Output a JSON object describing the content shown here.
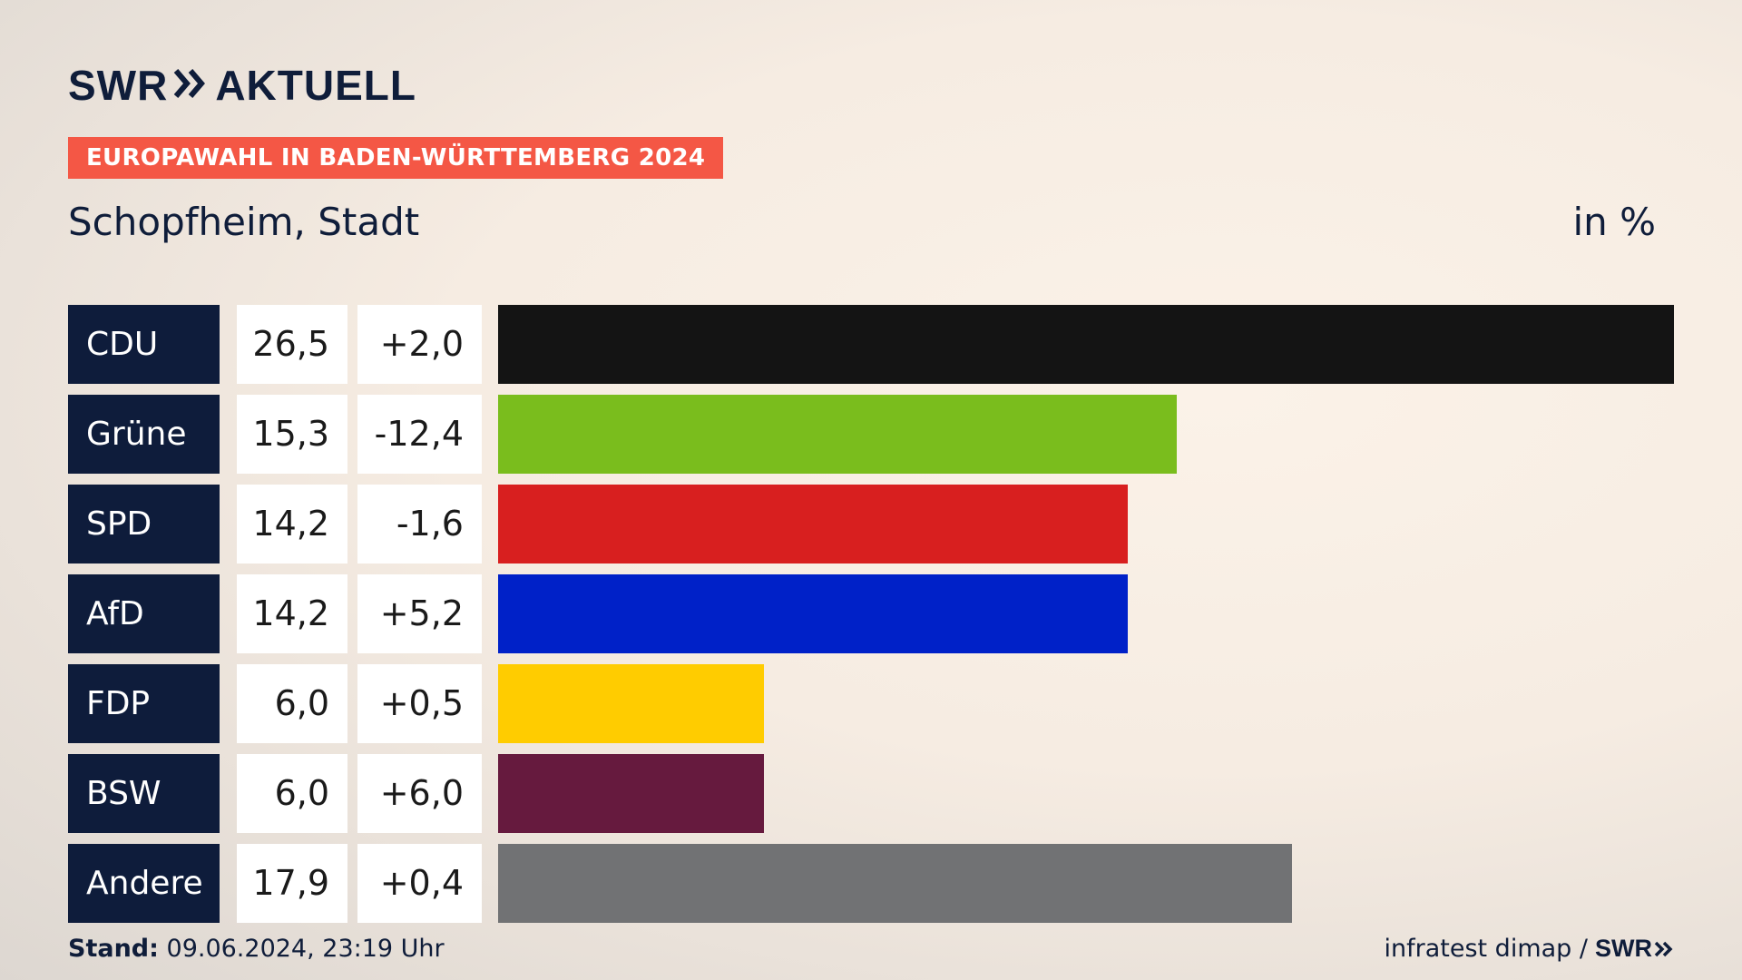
{
  "header": {
    "brand": "SWR",
    "brand_suffix": "AKTUELL",
    "tag": "EUROPAWAHL IN BADEN-WÜRTTEMBERG 2024",
    "place": "Schopfheim, Stadt",
    "unit": "in %"
  },
  "footer": {
    "stand_label": "Stand:",
    "stand_value": "09.06.2024, 23:19 Uhr",
    "source": "infratest dimap /",
    "source_brand": "SWR"
  },
  "colors": {
    "navy": "#0e1c3b",
    "tag_red": "#f45745"
  },
  "chart_data": {
    "type": "bar",
    "orientation": "horizontal",
    "categories": [
      "CDU",
      "Grüne",
      "SPD",
      "AfD",
      "FDP",
      "BSW",
      "Andere"
    ],
    "values": [
      26.5,
      15.3,
      14.2,
      14.2,
      6.0,
      6.0,
      17.9
    ],
    "value_labels": [
      "26,5",
      "15,3",
      "14,2",
      "14,2",
      "6,0",
      "6,0",
      "17,9"
    ],
    "changes": [
      2.0,
      -12.4,
      -1.6,
      5.2,
      0.5,
      6.0,
      0.4
    ],
    "change_labels": [
      "+2,0",
      "-12,4",
      "-1,6",
      "+5,2",
      "+0,5",
      "+6,0",
      "+0,4"
    ],
    "colors": [
      "#141414",
      "#7abd1d",
      "#d81f1f",
      "#0021c8",
      "#ffcc00",
      "#661a3e",
      "#717274"
    ],
    "xlim": [
      0,
      26.5
    ]
  }
}
